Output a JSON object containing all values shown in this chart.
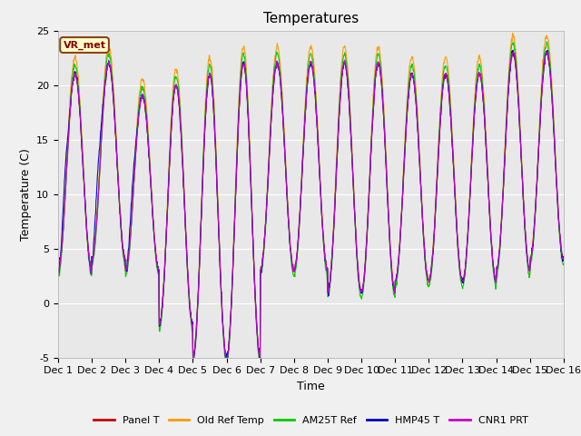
{
  "title": "Temperatures",
  "xlabel": "Time",
  "ylabel": "Temperature (C)",
  "ylim": [
    -5,
    25
  ],
  "xlim_days": [
    1,
    16
  ],
  "annotation": "VR_met",
  "background_color": "#e8e8e8",
  "figure_color": "#f0f0f0",
  "grid_color": "white",
  "series_order": [
    "Panel T",
    "Old Ref Temp",
    "AM25T Ref",
    "HMP45 T",
    "CNR1 PRT"
  ],
  "series_colors": {
    "Panel T": "#cc0000",
    "Old Ref Temp": "#ff9900",
    "AM25T Ref": "#00cc00",
    "HMP45 T": "#0000cc",
    "CNR1 PRT": "#cc00cc"
  },
  "lw": 0.8,
  "tick_fontsize": 8,
  "label_fontsize": 9,
  "title_fontsize": 11,
  "day_mins": [
    3,
    4,
    3,
    -2,
    -5,
    -5,
    3,
    3,
    1,
    1,
    2,
    2,
    2,
    3,
    4
  ],
  "day_maxs": [
    21,
    22,
    19,
    20,
    21,
    22,
    22,
    22,
    22,
    22,
    21,
    21,
    21,
    23,
    23
  ],
  "n_per_day": 96
}
